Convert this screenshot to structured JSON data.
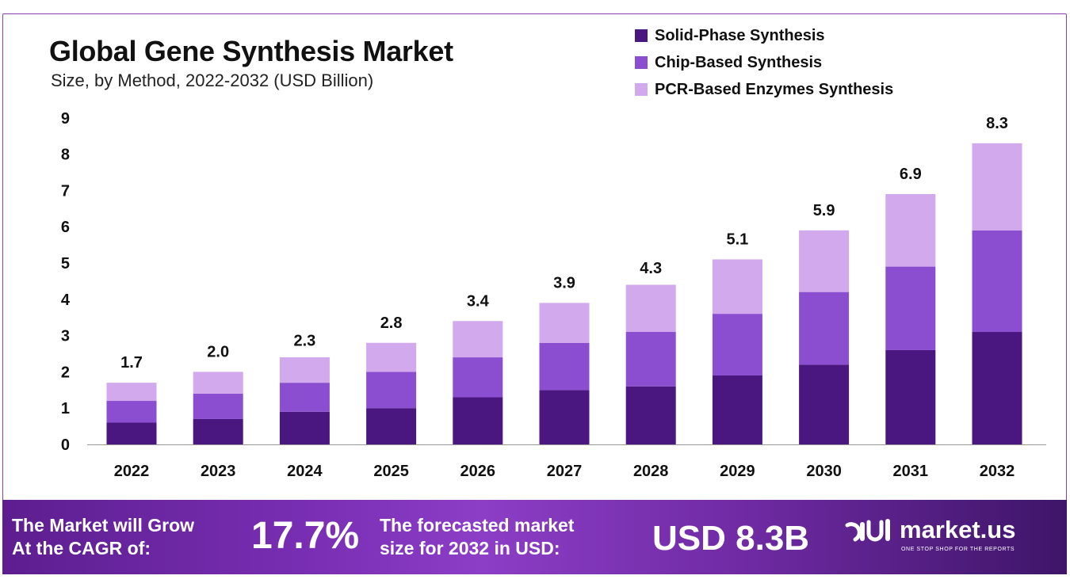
{
  "header": {
    "title": "Global Gene Synthesis Market",
    "subtitle": "Size, by Method, 2022-2032 (USD Billion)"
  },
  "chart_data": {
    "type": "bar",
    "stacked": true,
    "categories": [
      "2022",
      "2023",
      "2024",
      "2025",
      "2026",
      "2027",
      "2028",
      "2029",
      "2030",
      "2031",
      "2032"
    ],
    "series": [
      {
        "name": "Solid-Phase Synthesis",
        "color": "#4a1680",
        "values": [
          0.6,
          0.7,
          0.9,
          1.0,
          1.3,
          1.5,
          1.6,
          1.9,
          2.2,
          2.6,
          3.1
        ]
      },
      {
        "name": "Chip-Based Synthesis",
        "color": "#8b4ed0",
        "values": [
          0.6,
          0.7,
          0.8,
          1.0,
          1.1,
          1.3,
          1.5,
          1.7,
          2.0,
          2.3,
          2.8
        ]
      },
      {
        "name": "PCR-Based Enzymes Synthesis",
        "color": "#d2a9ec",
        "values": [
          0.5,
          0.6,
          0.7,
          0.8,
          1.0,
          1.1,
          1.3,
          1.5,
          1.7,
          2.0,
          2.4
        ]
      }
    ],
    "totals": [
      "1.7",
      "2.0",
      "2.3",
      "2.8",
      "3.4",
      "3.9",
      "4.3",
      "5.1",
      "5.9",
      "6.9",
      "8.3"
    ],
    "yticks": [
      "0",
      "1",
      "2",
      "3",
      "4",
      "5",
      "6",
      "7",
      "8",
      "9"
    ],
    "ylim": [
      0,
      9
    ],
    "grid": false,
    "legend_position": "top-right",
    "title": "Global Gene Synthesis Market",
    "xlabel": "",
    "ylabel": ""
  },
  "footer": {
    "cagr_label_line1": "The Market will Grow",
    "cagr_label_line2": "At the CAGR of:",
    "cagr_value": "17.7%",
    "forecast_label_line1": "The forecasted market",
    "forecast_label_line2": "size for 2032 in USD:",
    "forecast_value": "USD 8.3B",
    "brand_name": "market.us",
    "brand_tagline": "ONE STOP SHOP FOR THE REPORTS"
  },
  "colors": {
    "footer_gradient_start": "#5d1e8f",
    "footer_gradient_end": "#3e1568",
    "frame_border": "#8a3fb0"
  }
}
